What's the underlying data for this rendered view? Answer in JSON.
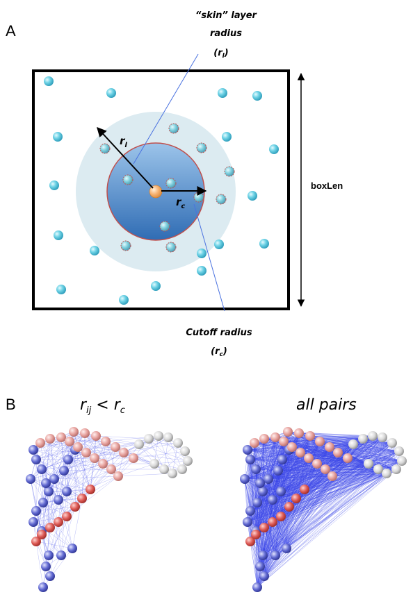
{
  "panel_a": {
    "label": "A",
    "skin_label_line1": "“skin” layer",
    "skin_label_line2": "radius",
    "skin_label_line3_prefix": "(r",
    "skin_label_line3_sub": "l",
    "skin_label_line3_suffix": ")",
    "rl_symbol": "r",
    "rl_sub": "l",
    "rc_symbol": "r",
    "rc_sub": "c",
    "boxlen_label": "boxLen",
    "cutoff_label_line1": "Cutoff radius",
    "cutoff_label_line2_prefix": "(r",
    "cutoff_label_line2_sub": "c",
    "cutoff_label_line2_suffix": ")"
  },
  "panel_b": {
    "label": "B",
    "left_caption_r1": "r",
    "left_caption_sub1": "ij",
    "left_caption_op": " < ",
    "left_caption_r2": "r",
    "left_caption_sub2": "c",
    "right_caption": "all pairs"
  },
  "colors": {
    "particle": "#5cc8dc",
    "particle_inner": "#7ec9d6",
    "central_particle": "#f5b77a",
    "skin_region": "#dbe9ef",
    "cutoff_region": "#4d86c6",
    "cutoff_outline": "#c0504d",
    "pointer_line": "#4a72e0",
    "bead_red": "#d9534f",
    "bead_pink": "#e8a3a0",
    "bead_blue": "#5b63c9",
    "bead_gray": "#d8d8d8",
    "pair_lines": "#3a46e8"
  }
}
